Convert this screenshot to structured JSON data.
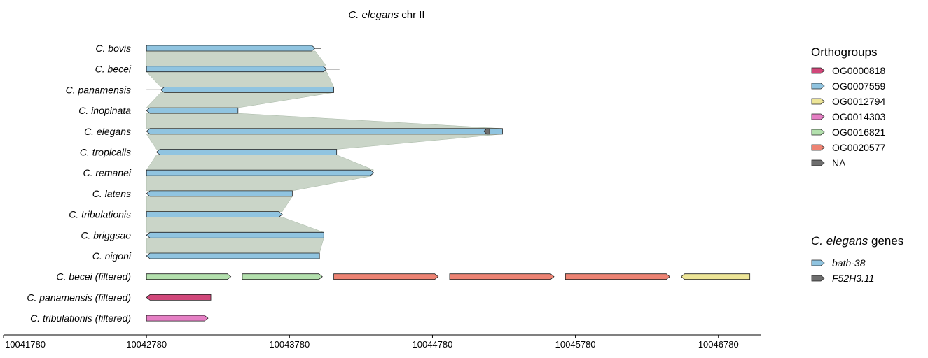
{
  "chart_data": {
    "type": "gene-synteny",
    "title": {
      "italic": "C. elegans",
      "rest": " chr II"
    },
    "x_axis": {
      "range": [
        10041780,
        10047080
      ],
      "ticks": [
        "10041780",
        "10042780",
        "10043780",
        "10044780",
        "10045780",
        "10046780"
      ]
    },
    "tracks": [
      {
        "name": "C. bovis",
        "line": [
          10042780,
          10044000
        ],
        "genes": [
          {
            "start": 10042780,
            "end": 10043960,
            "strand": "+",
            "group": "OG0007559"
          }
        ]
      },
      {
        "name": "C. becei",
        "line": [
          10042780,
          10044130
        ],
        "genes": [
          {
            "start": 10042780,
            "end": 10044040,
            "strand": "+",
            "group": "OG0007559"
          }
        ]
      },
      {
        "name": "C. panamensis",
        "line": [
          10042780,
          10044090
        ],
        "genes": [
          {
            "start": 10042880,
            "end": 10044090,
            "strand": "-",
            "group": "OG0007559"
          }
        ]
      },
      {
        "name": "C. inopinata",
        "line": [
          10042780,
          10043420
        ],
        "genes": [
          {
            "start": 10042780,
            "end": 10043420,
            "strand": "-",
            "group": "OG0007559"
          }
        ]
      },
      {
        "name": "C. elegans",
        "line": [
          10042780,
          10045270
        ],
        "genes": [
          {
            "start": 10042780,
            "end": 10045270,
            "strand": "-",
            "group": "OG0007559"
          },
          {
            "start": 10045140,
            "end": 10045180,
            "strand": "-",
            "group": "NA"
          }
        ]
      },
      {
        "name": "C. tropicalis",
        "line": [
          10042780,
          10044110
        ],
        "genes": [
          {
            "start": 10042850,
            "end": 10044110,
            "strand": "-",
            "group": "OG0007559"
          }
        ]
      },
      {
        "name": "C. remanei",
        "line": [
          10042780,
          10044370
        ],
        "genes": [
          {
            "start": 10042780,
            "end": 10044370,
            "strand": "+",
            "group": "OG0007559"
          }
        ]
      },
      {
        "name": "C. latens",
        "line": [
          10042780,
          10043800
        ],
        "genes": [
          {
            "start": 10042780,
            "end": 10043800,
            "strand": "-",
            "group": "OG0007559"
          }
        ]
      },
      {
        "name": "C. tribulationis",
        "line": [
          10042780,
          10043730
        ],
        "genes": [
          {
            "start": 10042780,
            "end": 10043730,
            "strand": "+",
            "group": "OG0007559"
          }
        ]
      },
      {
        "name": "C. briggsae",
        "line": [
          10042780,
          10044020
        ],
        "genes": [
          {
            "start": 10042780,
            "end": 10044020,
            "strand": "-",
            "group": "OG0007559"
          }
        ]
      },
      {
        "name": "C. nigoni",
        "line": [
          10042780,
          10043990
        ],
        "genes": [
          {
            "start": 10042780,
            "end": 10043990,
            "strand": "-",
            "group": "OG0007559"
          }
        ]
      },
      {
        "name": "C. becei (filtered)",
        "line": null,
        "genes": [
          {
            "start": 10042780,
            "end": 10043370,
            "strand": "+",
            "group": "OG0016821"
          },
          {
            "start": 10043450,
            "end": 10044010,
            "strand": "+",
            "group": "OG0016821"
          },
          {
            "start": 10044090,
            "end": 10044820,
            "strand": "+",
            "group": "OG0020577"
          },
          {
            "start": 10044900,
            "end": 10045630,
            "strand": "+",
            "group": "OG0020577"
          },
          {
            "start": 10045710,
            "end": 10046440,
            "strand": "+",
            "group": "OG0020577"
          },
          {
            "start": 10046520,
            "end": 10047000,
            "strand": "-",
            "group": "OG0012794"
          }
        ]
      },
      {
        "name": "C. panamensis (filtered)",
        "line": null,
        "genes": [
          {
            "start": 10042780,
            "end": 10043230,
            "strand": "-",
            "group": "OG0000818"
          }
        ]
      },
      {
        "name": "C. tribulationis (filtered)",
        "line": null,
        "genes": [
          {
            "start": 10042780,
            "end": 10043210,
            "strand": "+",
            "group": "OG0014303"
          }
        ]
      }
    ],
    "legend_orthogroups": {
      "title": "Orthogroups",
      "items": [
        {
          "label": "OG0000818",
          "color": "#d1477a"
        },
        {
          "label": "OG0007559",
          "color": "#90c4e0"
        },
        {
          "label": "OG0012794",
          "color": "#ede597"
        },
        {
          "label": "OG0014303",
          "color": "#e57fc4"
        },
        {
          "label": "OG0016821",
          "color": "#b3e0ad"
        },
        {
          "label": "OG0020577",
          "color": "#ed8373"
        },
        {
          "label": "NA",
          "color": "#6e6e6e"
        }
      ]
    },
    "legend_genes": {
      "title_italic": "C. elegans",
      "title_rest": " genes",
      "items": [
        {
          "label": "bath-38",
          "color": "#90c4e0"
        },
        {
          "label": "F52H3.11",
          "color": "#6e6e6e"
        }
      ]
    },
    "synteny_color": "#b8c7b6"
  }
}
